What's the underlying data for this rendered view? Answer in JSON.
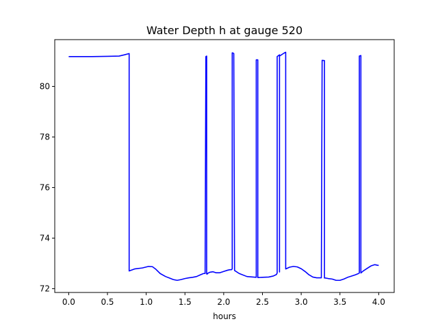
{
  "chart_data": {
    "type": "line",
    "title": "Water Depth h at gauge 520",
    "xlabel": "hours",
    "ylabel": "",
    "xlim": [
      -0.18,
      4.2
    ],
    "ylim": [
      71.85,
      81.85
    ],
    "xticks": [
      0.0,
      0.5,
      1.0,
      1.5,
      2.0,
      2.5,
      3.0,
      3.5,
      4.0
    ],
    "xtick_labels": [
      "0.0",
      "0.5",
      "1.0",
      "1.5",
      "2.0",
      "2.5",
      "3.0",
      "3.5",
      "4.0"
    ],
    "yticks": [
      72,
      74,
      76,
      78,
      80
    ],
    "ytick_labels": [
      "72",
      "74",
      "76",
      "78",
      "80"
    ],
    "grid": false,
    "series": [
      {
        "color": "#0000ff",
        "x": [
          0.0,
          0.3,
          0.5,
          0.65,
          0.72,
          0.78,
          0.78,
          0.85,
          0.95,
          1.03,
          1.08,
          1.12,
          1.18,
          1.25,
          1.3,
          1.35,
          1.4,
          1.45,
          1.5,
          1.55,
          1.6,
          1.65,
          1.7,
          1.74,
          1.76,
          1.77,
          1.78,
          1.78,
          1.79,
          1.79,
          1.82,
          1.86,
          1.9,
          1.95,
          2.0,
          2.05,
          2.08,
          2.1,
          2.11,
          2.11,
          2.12,
          2.13,
          2.14,
          2.14,
          2.2,
          2.3,
          2.38,
          2.42,
          2.42,
          2.43,
          2.44,
          2.44,
          2.5,
          2.58,
          2.64,
          2.68,
          2.69,
          2.69,
          2.72,
          2.72,
          2.72,
          2.78,
          2.8,
          2.8,
          2.85,
          2.9,
          2.95,
          3.0,
          3.05,
          3.1,
          3.15,
          3.2,
          3.23,
          3.26,
          3.27,
          3.27,
          3.3,
          3.3,
          3.3,
          3.35,
          3.4,
          3.45,
          3.5,
          3.55,
          3.6,
          3.65,
          3.7,
          3.74,
          3.75,
          3.75,
          3.77,
          3.77,
          3.8,
          3.85,
          3.9,
          3.95,
          3.98,
          4.0
        ],
        "y": [
          81.18,
          81.18,
          81.19,
          81.2,
          81.25,
          81.3,
          72.7,
          72.78,
          72.82,
          72.88,
          72.87,
          72.78,
          72.6,
          72.48,
          72.42,
          72.36,
          72.33,
          72.36,
          72.4,
          72.43,
          72.45,
          72.48,
          72.55,
          72.6,
          72.6,
          81.18,
          81.2,
          72.58,
          72.58,
          72.6,
          72.65,
          72.67,
          72.63,
          72.63,
          72.68,
          72.73,
          72.75,
          72.75,
          72.78,
          81.33,
          81.32,
          81.3,
          72.75,
          72.72,
          72.6,
          72.48,
          72.46,
          72.45,
          81.05,
          81.05,
          81.05,
          72.44,
          72.45,
          72.46,
          72.5,
          72.56,
          72.62,
          81.18,
          81.25,
          72.66,
          81.2,
          81.32,
          81.35,
          72.78,
          72.85,
          72.88,
          72.86,
          72.79,
          72.68,
          72.55,
          72.46,
          72.43,
          72.43,
          72.43,
          81.02,
          81.03,
          81.02,
          72.42,
          72.43,
          72.4,
          72.38,
          72.33,
          72.33,
          72.38,
          72.45,
          72.5,
          72.55,
          72.6,
          72.62,
          81.2,
          81.22,
          72.62,
          72.7,
          72.8,
          72.9,
          72.95,
          72.93,
          72.92
        ]
      }
    ]
  }
}
